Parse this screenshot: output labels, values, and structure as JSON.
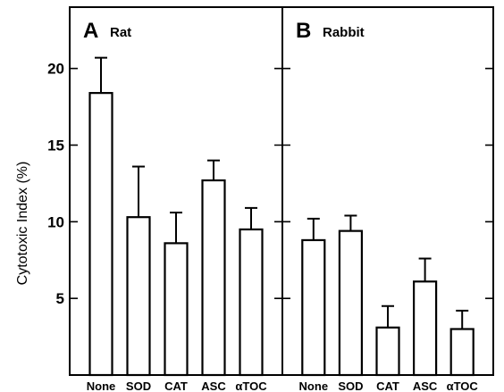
{
  "chart_data": {
    "type": "bar",
    "ylabel": "Cytotoxic Index (%)",
    "ylim": [
      0,
      24
    ],
    "yticks": [
      5,
      10,
      15,
      20
    ],
    "grid": false,
    "panels": [
      {
        "letter": "A",
        "name": "Rat",
        "categories": [
          "None",
          "SOD",
          "CAT",
          "ASC",
          "αTOC"
        ],
        "values": [
          18.4,
          10.3,
          8.6,
          12.7,
          9.5
        ],
        "errors": [
          2.3,
          3.3,
          2.0,
          1.3,
          1.4
        ]
      },
      {
        "letter": "B",
        "name": "Rabbit",
        "categories": [
          "None",
          "SOD",
          "CAT",
          "ASC",
          "αTOC"
        ],
        "values": [
          8.8,
          9.4,
          3.1,
          6.1,
          3.0
        ],
        "errors": [
          1.4,
          1.0,
          1.4,
          1.5,
          1.2
        ]
      }
    ]
  }
}
